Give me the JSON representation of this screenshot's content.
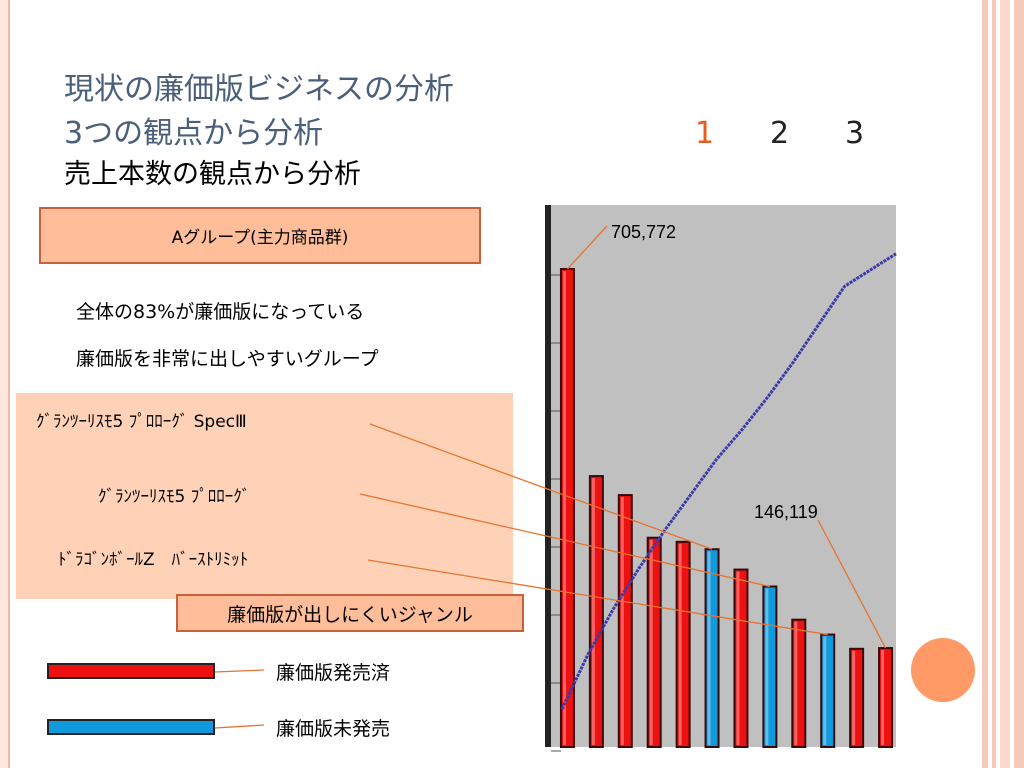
{
  "slide": {
    "title_line1": "現状の廉価版ビジネスの分析",
    "title_line2": "3つの観点から分析",
    "page_numbers": [
      "1",
      "2",
      "3"
    ],
    "subtitle": "売上本数の観点から分析",
    "group_box": "Aグループ(主力商品群)",
    "stat_line1": "全体の83%が廉価版になっている",
    "stat_line2": "廉価版を非常に出しやすいグループ",
    "annotations": [
      "ｸﾞﾗﾝﾂｰﾘｽﾓ5 ﾌﾟﾛﾛｰｸﾞ SpecⅢ",
      "ｸﾞﾗﾝﾂｰﾘｽﾓ5 ﾌﾟﾛﾛｰｸﾞ",
      "ﾄﾞﾗｺﾞﾝﾎﾞｰﾙZ　ﾊﾞｰｽﾄﾘﾐｯﾄ"
    ],
    "genre_box": "廉価版が出しにくいジャンル",
    "legend": [
      {
        "label": "廉価版発売済",
        "color": "#ee1111"
      },
      {
        "label": "廉価版未発売",
        "color": "#1199dd"
      }
    ],
    "colors": {
      "title": "#4a5f7a",
      "page_active": "#e65c1e",
      "page_inactive": "#222222",
      "accent": "#ff9966",
      "plot_bg": "#c0c0c0",
      "cumulative_line": "#3a3aa8"
    }
  },
  "chart_data": {
    "type": "bar",
    "title": "",
    "xlabel": "",
    "ylabel": "",
    "ylim": [
      0,
      800000
    ],
    "grid": false,
    "values": [
      705772,
      400000,
      372000,
      309000,
      303000,
      292000,
      262000,
      237000,
      188000,
      166000,
      145000,
      146119
    ],
    "released": [
      true,
      true,
      true,
      true,
      true,
      false,
      true,
      false,
      true,
      false,
      true,
      true
    ],
    "cumulative_line_share": [
      0.07,
      0.17,
      0.255,
      0.33,
      0.4,
      0.465,
      0.53,
      0.585,
      0.645,
      0.71,
      0.78,
      0.85,
      0.88,
      0.91
    ],
    "data_labels": [
      {
        "text": "705,772",
        "index": 0
      },
      {
        "text": "146,119",
        "index": 11
      }
    ]
  }
}
